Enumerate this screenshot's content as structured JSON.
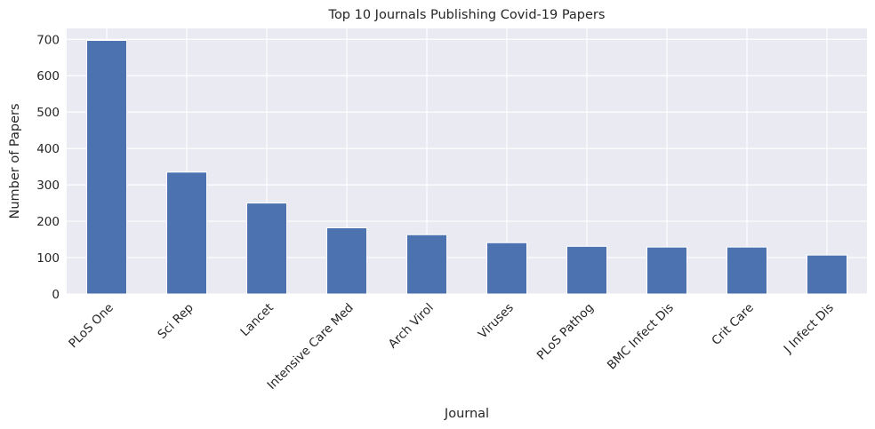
{
  "chart_data": {
    "type": "bar",
    "title": "Top 10 Journals Publishing Covid-19 Papers",
    "xlabel": "Journal",
    "ylabel": "Number of Papers",
    "categories": [
      "PLoS One",
      "Sci Rep",
      "Lancet",
      "Intensive Care Med",
      "Arch Virol",
      "Viruses",
      "PLoS Pathog",
      "BMC Infect Dis",
      "Crit Care",
      "J Infect Dis"
    ],
    "values": [
      697,
      335,
      250,
      182,
      163,
      141,
      131,
      129,
      129,
      107
    ],
    "ylim": [
      0,
      730
    ],
    "yticks": [
      "0",
      "100",
      "200",
      "300",
      "400",
      "500",
      "600",
      "700"
    ],
    "grid": true,
    "legend": "none",
    "colors": {
      "bar": "#4c72b0",
      "plot_background": "#eaeaf2",
      "grid": "#ffffff",
      "text": "#262626"
    }
  }
}
